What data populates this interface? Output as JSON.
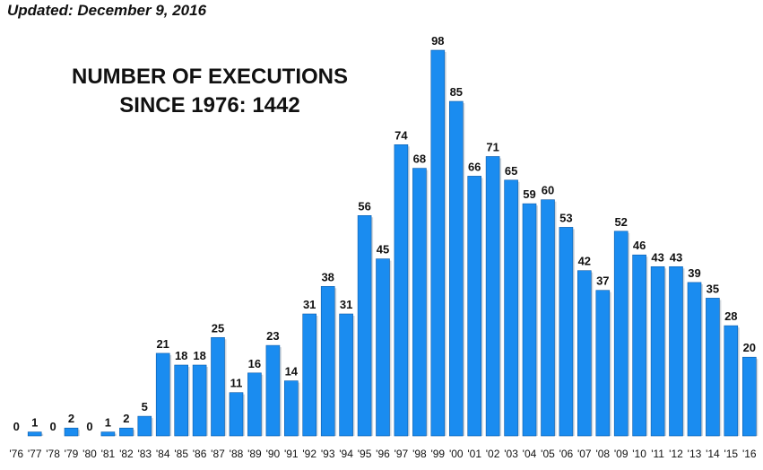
{
  "updated": "Updated: December 9, 2016",
  "title_line1": "NUMBER OF EXECUTIONS",
  "title_line2": "SINCE 1976: 1442",
  "colors": {
    "bar": "#1a8cf0",
    "bar_edge": "#0a5aa8",
    "text": "#111111"
  },
  "chart_data": {
    "type": "bar",
    "categories": [
      "'76",
      "'77",
      "'78",
      "'79",
      "'80",
      "'81",
      "'82",
      "'83",
      "'84",
      "'85",
      "'86",
      "'87",
      "'88",
      "'89",
      "'90",
      "'91",
      "'92",
      "'93",
      "'94",
      "'95",
      "'96",
      "'97",
      "'98",
      "'99",
      "'00",
      "'01",
      "'02",
      "'03",
      "'04",
      "'05",
      "'06",
      "'07",
      "'08",
      "'09",
      "'10",
      "'11",
      "'12",
      "'13",
      "'14",
      "'15",
      "'16"
    ],
    "values": [
      0,
      1,
      0,
      2,
      0,
      1,
      2,
      5,
      21,
      18,
      18,
      25,
      11,
      16,
      23,
      14,
      31,
      38,
      31,
      56,
      45,
      74,
      68,
      98,
      85,
      66,
      71,
      65,
      59,
      60,
      53,
      42,
      37,
      52,
      46,
      43,
      43,
      39,
      35,
      28,
      20
    ],
    "title": "NUMBER OF EXECUTIONS SINCE 1976: 1442",
    "ylim": [
      0,
      100
    ],
    "grid": false,
    "data_labels": true
  }
}
